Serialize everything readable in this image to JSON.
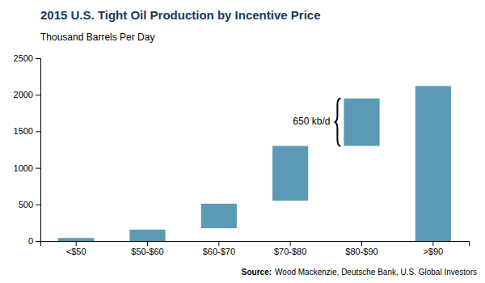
{
  "chart_data": {
    "type": "bar",
    "title": "2015 U.S. Tight Oil Production by Incentive Price",
    "ylabel": "Thousand Barrels Per Day",
    "categories": [
      "<$50",
      "$50-$60",
      "$60-$70",
      "$70-$80",
      "$80-$90",
      ">$90"
    ],
    "values": [
      40,
      155,
      510,
      1300,
      1950,
      2120
    ],
    "bottoms": [
      0,
      0,
      175,
      550,
      1300,
      0
    ],
    "color": "#5b9ab5",
    "ylim": [
      0,
      2500
    ],
    "yticks": [
      0,
      500,
      1000,
      1500,
      2000,
      2500
    ],
    "grid": false,
    "annotation": {
      "text": "650 kb/d",
      "category": "$80-$90"
    },
    "source": {
      "label": "Source:",
      "text": "Wood Mackenzie, Deutsche Bank, U.S. Global Investors"
    }
  }
}
